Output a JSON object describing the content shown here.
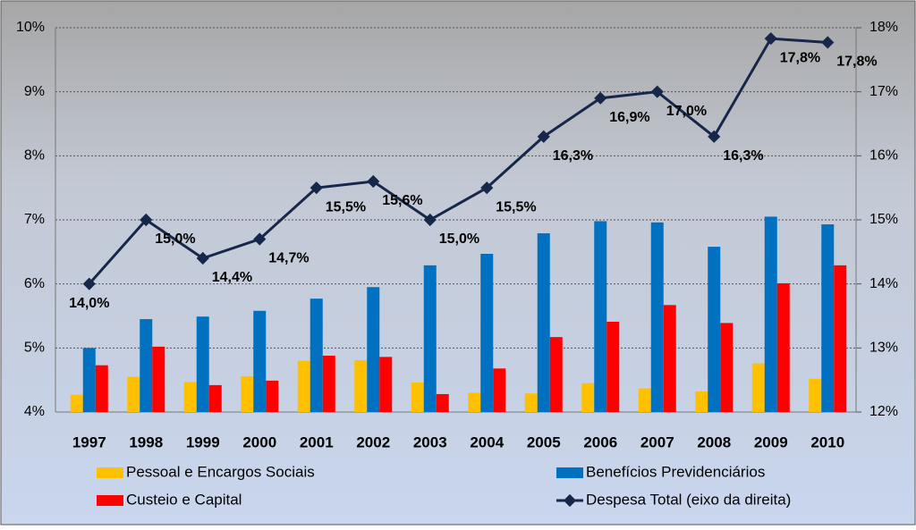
{
  "chart_data": {
    "type": "bar-line",
    "categories": [
      "1997",
      "1998",
      "1999",
      "2000",
      "2001",
      "2002",
      "2003",
      "2004",
      "2005",
      "2006",
      "2007",
      "2008",
      "2009",
      "2010"
    ],
    "series": [
      {
        "name": "Pessoal e Encargos Sociais",
        "color": "#ffc000",
        "type": "bar",
        "values": [
          4.27,
          4.55,
          4.47,
          4.56,
          4.8,
          4.81,
          4.46,
          4.3,
          4.29,
          4.45,
          4.37,
          4.32,
          4.76,
          4.52
        ]
      },
      {
        "name": "Benefícios Previdenciários",
        "color": "#0070c0",
        "type": "bar",
        "values": [
          5.0,
          5.45,
          5.49,
          5.58,
          5.77,
          5.95,
          6.29,
          6.47,
          6.79,
          6.98,
          6.96,
          6.58,
          7.05,
          6.93
        ]
      },
      {
        "name": "Custeio e Capital",
        "color": "#ff0000",
        "type": "bar",
        "values": [
          4.73,
          5.02,
          4.42,
          4.49,
          4.88,
          4.86,
          4.28,
          4.68,
          5.17,
          5.41,
          5.67,
          5.39,
          6.01,
          6.29
        ]
      },
      {
        "name": "Despesa Total (eixo da direita)",
        "color": "#17274a",
        "type": "line",
        "axis": "y2",
        "values": [
          14.0,
          15.0,
          14.4,
          14.7,
          15.5,
          15.6,
          15.0,
          15.5,
          16.3,
          16.9,
          17.0,
          16.3,
          17.83,
          17.77
        ],
        "value_labels": [
          "14,0%",
          "15,0%",
          "14,4%",
          "14,7%",
          "15,5%",
          "15,6%",
          "15,0%",
          "15,5%",
          "16,3%",
          "16,9%",
          "17,0%",
          "16,3%",
          "17,8%",
          "17,8%"
        ]
      }
    ],
    "ylim": [
      4,
      10
    ],
    "yticks": [
      {
        "value": 4,
        "label": "4%"
      },
      {
        "value": 5,
        "label": "5%"
      },
      {
        "value": 6,
        "label": "6%"
      },
      {
        "value": 7,
        "label": "7%"
      },
      {
        "value": 8,
        "label": "8%"
      },
      {
        "value": 9,
        "label": "9%"
      },
      {
        "value": 10,
        "label": "10%"
      }
    ],
    "y2lim": [
      12,
      18
    ],
    "y2ticks": [
      {
        "value": 12,
        "label": "12%"
      },
      {
        "value": 13,
        "label": "13%"
      },
      {
        "value": 14,
        "label": "14%"
      },
      {
        "value": 15,
        "label": "15%"
      },
      {
        "value": 16,
        "label": "16%"
      },
      {
        "value": 17,
        "label": "17%"
      },
      {
        "value": 18,
        "label": "18%"
      }
    ],
    "grid": true
  }
}
